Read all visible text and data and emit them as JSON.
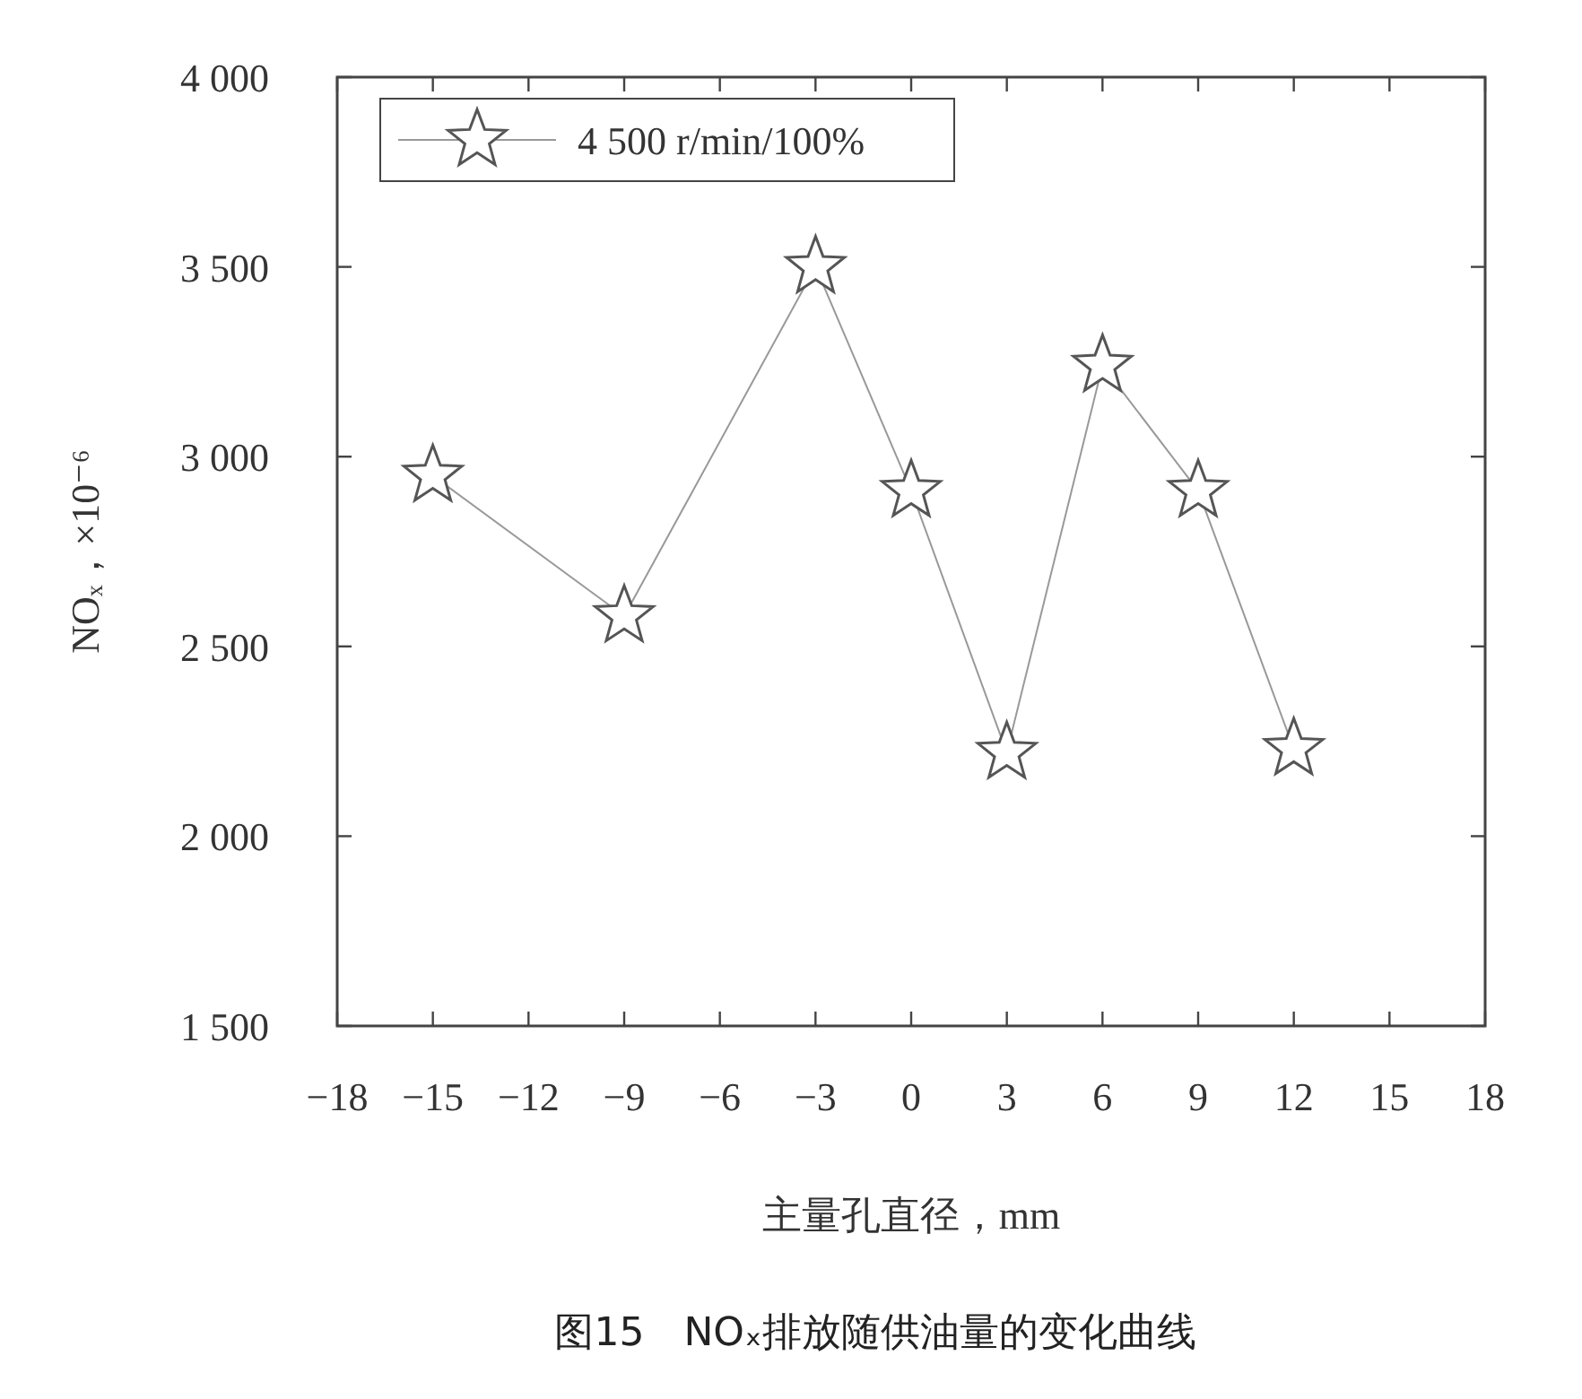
{
  "chart_data": {
    "type": "line",
    "title": "图15　NOₓ排放随供油量的变化曲线",
    "xlabel": "主量孔直径，mm",
    "ylabel": "NOₓ，×10⁻⁶",
    "x": [
      -15,
      -9,
      -3,
      0,
      3,
      6,
      9,
      12
    ],
    "series": [
      {
        "name": "4 500 r/min/100%",
        "color": "#555555",
        "values": [
          2950,
          2580,
          3500,
          2910,
          2220,
          3240,
          2910,
          2230
        ]
      }
    ],
    "xlim": [
      -18,
      18
    ],
    "ylim": [
      1500,
      4000
    ],
    "xticks": [
      {
        "value": -18,
        "label": "−18"
      },
      {
        "value": -15,
        "label": "−15"
      },
      {
        "value": -12,
        "label": "−12"
      },
      {
        "value": -9,
        "label": "−9"
      },
      {
        "value": -6,
        "label": "−6"
      },
      {
        "value": -3,
        "label": "−3"
      },
      0,
      3,
      6,
      9,
      12,
      15,
      18
    ],
    "yticks": [
      {
        "value": 1500,
        "label": "1 500"
      },
      {
        "value": 2000,
        "label": "2 000"
      },
      {
        "value": 2500,
        "label": "2 500"
      },
      {
        "value": 3000,
        "label": "3 000"
      },
      {
        "value": 3500,
        "label": "3 500"
      },
      {
        "value": 4000,
        "label": "4 000"
      }
    ],
    "marker": "star",
    "line_style": "solid",
    "grid": false,
    "legend": "top left"
  }
}
